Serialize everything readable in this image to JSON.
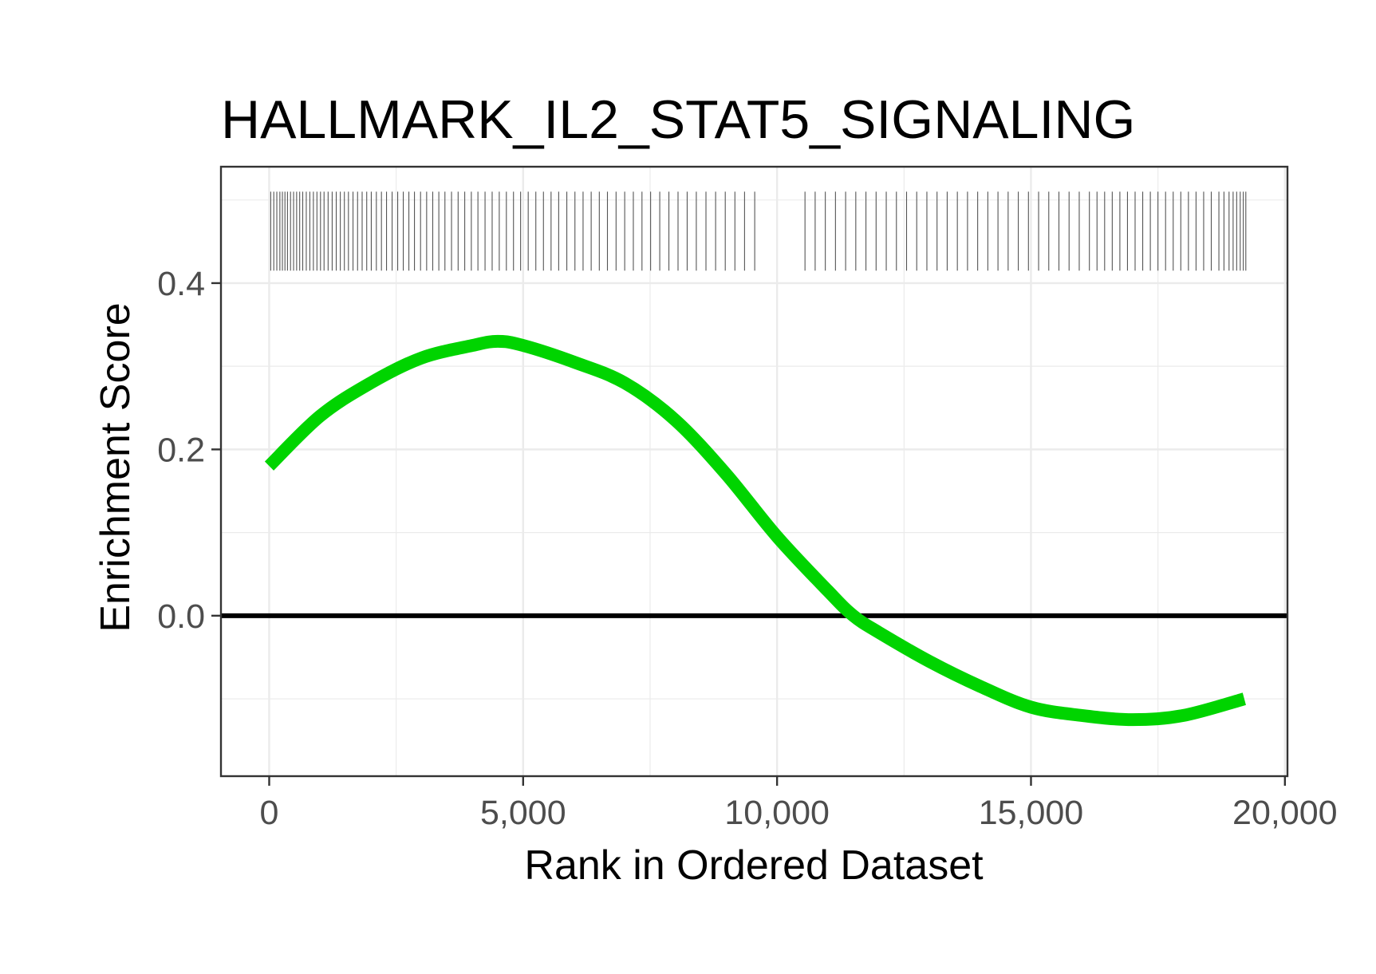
{
  "chart_data": {
    "type": "line",
    "title": "HALLMARK_IL2_STAT5_SIGNALING",
    "xlabel": "Rank in Ordered Dataset",
    "ylabel": "Enrichment Score",
    "xlim": [
      -950,
      20050
    ],
    "ylim": [
      -0.193,
      0.54
    ],
    "x_ticks": [
      0,
      5000,
      10000,
      15000,
      20000
    ],
    "x_tick_labels": [
      "0",
      "5,000",
      "10,000",
      "15,000",
      "20,000"
    ],
    "y_ticks": [
      0.0,
      0.2,
      0.4
    ],
    "y_tick_labels": [
      "0.0",
      "0.2",
      "0.4"
    ],
    "y_minor_ticks": [
      -0.1,
      0.1,
      0.3,
      0.5
    ],
    "x_minor_ticks": [
      2500,
      7500,
      12500,
      17500
    ],
    "grid": true,
    "reference_line_y": 0,
    "colors": {
      "curve": "#00d400",
      "rug": "#555555",
      "reference": "#000000",
      "panel_border": "#333333",
      "grid": "#ebebeb"
    },
    "series": [
      {
        "x": [
          0,
          1000,
          2000,
          3000,
          4000,
          4500,
          5000,
          6000,
          7000,
          8000,
          9000,
          10000,
          11000,
          11500,
          12000,
          13000,
          14000,
          15000,
          16000,
          17000,
          18000,
          19200
        ],
        "values": [
          0.18,
          0.24,
          0.28,
          0.31,
          0.325,
          0.33,
          0.325,
          0.305,
          0.28,
          0.235,
          0.17,
          0.095,
          0.03,
          0.0,
          -0.02,
          -0.055,
          -0.085,
          -0.11,
          -0.12,
          -0.125,
          -0.12,
          -0.1
        ]
      }
    ],
    "rug": {
      "y_range": [
        0.415,
        0.51
      ],
      "positions": [
        30,
        90,
        150,
        210,
        260,
        310,
        360,
        420,
        480,
        540,
        600,
        660,
        730,
        800,
        870,
        940,
        1010,
        1080,
        1160,
        1240,
        1320,
        1400,
        1480,
        1560,
        1650,
        1740,
        1830,
        1920,
        2010,
        2110,
        2210,
        2310,
        2420,
        2530,
        2640,
        2750,
        2860,
        2980,
        3100,
        3220,
        3340,
        3460,
        3590,
        3720,
        3850,
        3980,
        4110,
        4250,
        4390,
        4530,
        4670,
        4810,
        4950,
        5100,
        5250,
        5400,
        5550,
        5700,
        5860,
        6020,
        6180,
        6340,
        6500,
        6660,
        6830,
        7000,
        7170,
        7340,
        7510,
        7690,
        7870,
        8050,
        8230,
        8410,
        8600,
        8790,
        8980,
        9170,
        9360,
        9560,
        10550,
        10750,
        10950,
        11150,
        11350,
        11550,
        11750,
        11950,
        12150,
        12350,
        12550,
        12750,
        12950,
        13150,
        13350,
        13550,
        13750,
        13950,
        14150,
        14350,
        14550,
        14750,
        14950,
        15150,
        15350,
        15550,
        15750,
        15950,
        16150,
        16300,
        16450,
        16600,
        16750,
        16900,
        17050,
        17200,
        17350,
        17500,
        17650,
        17800,
        17950,
        18100,
        18250,
        18400,
        18550,
        18700,
        18800,
        18900,
        18980,
        19050,
        19120,
        19180,
        19230
      ]
    }
  }
}
